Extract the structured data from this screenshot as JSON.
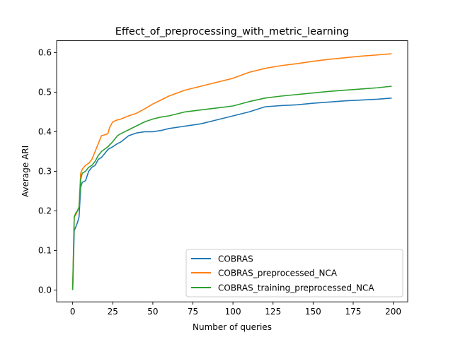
{
  "chart_data": {
    "type": "line",
    "title": "Effect_of_preprocessing_with_metric_learning",
    "xlabel": "Number of queries",
    "ylabel": "Average ARI",
    "xlim": [
      -10,
      209
    ],
    "ylim": [
      -0.03,
      0.63
    ],
    "xticks": [
      0,
      25,
      50,
      75,
      100,
      125,
      150,
      175,
      200
    ],
    "xtick_labels": [
      "0",
      "25",
      "50",
      "75",
      "100",
      "125",
      "150",
      "175",
      "200"
    ],
    "yticks": [
      0.0,
      0.1,
      0.2,
      0.3,
      0.4,
      0.5,
      0.6
    ],
    "ytick_labels": [
      "0.0",
      "0.1",
      "0.2",
      "0.3",
      "0.4",
      "0.5",
      "0.6"
    ],
    "grid": false,
    "legend_position": "lower-right",
    "series": [
      {
        "name": "COBRAS",
        "color": "#1f77b4",
        "x": [
          0,
          1,
          2,
          3,
          4,
          5,
          6,
          8,
          10,
          12,
          14,
          16,
          18,
          20,
          22,
          25,
          28,
          30,
          35,
          40,
          45,
          50,
          55,
          60,
          70,
          80,
          90,
          100,
          110,
          120,
          130,
          140,
          150,
          160,
          170,
          180,
          190,
          199
        ],
        "y": [
          0.0,
          0.15,
          0.16,
          0.17,
          0.185,
          0.26,
          0.272,
          0.276,
          0.3,
          0.31,
          0.315,
          0.33,
          0.335,
          0.345,
          0.355,
          0.362,
          0.37,
          0.374,
          0.39,
          0.397,
          0.4,
          0.4,
          0.403,
          0.408,
          0.414,
          0.42,
          0.43,
          0.44,
          0.45,
          0.463,
          0.466,
          0.468,
          0.472,
          0.475,
          0.478,
          0.48,
          0.482,
          0.485
        ]
      },
      {
        "name": "COBRAS_preprocessed_NCA",
        "color": "#ff7f0e",
        "x": [
          0,
          1,
          2,
          3,
          4,
          5,
          6,
          8,
          10,
          12,
          14,
          16,
          18,
          20,
          22,
          23,
          25,
          28,
          30,
          35,
          40,
          45,
          50,
          55,
          60,
          70,
          80,
          90,
          100,
          110,
          120,
          130,
          140,
          150,
          160,
          170,
          180,
          190,
          199
        ],
        "y": [
          0.0,
          0.185,
          0.19,
          0.2,
          0.21,
          0.295,
          0.305,
          0.315,
          0.32,
          0.33,
          0.35,
          0.37,
          0.39,
          0.392,
          0.395,
          0.41,
          0.425,
          0.43,
          0.432,
          0.44,
          0.447,
          0.458,
          0.47,
          0.48,
          0.49,
          0.505,
          0.515,
          0.525,
          0.535,
          0.55,
          0.56,
          0.567,
          0.572,
          0.578,
          0.583,
          0.587,
          0.591,
          0.594,
          0.597
        ]
      },
      {
        "name": "COBRAS_training_preprocessed_NCA",
        "color": "#2ca02c",
        "x": [
          0,
          1,
          2,
          3,
          4,
          5,
          6,
          8,
          10,
          12,
          14,
          16,
          18,
          20,
          22,
          25,
          28,
          30,
          35,
          40,
          45,
          50,
          55,
          60,
          70,
          80,
          90,
          100,
          110,
          120,
          130,
          140,
          150,
          160,
          170,
          180,
          190,
          199
        ],
        "y": [
          0.0,
          0.185,
          0.195,
          0.2,
          0.21,
          0.28,
          0.295,
          0.3,
          0.31,
          0.315,
          0.325,
          0.34,
          0.35,
          0.356,
          0.362,
          0.375,
          0.39,
          0.395,
          0.405,
          0.415,
          0.425,
          0.432,
          0.437,
          0.44,
          0.45,
          0.455,
          0.46,
          0.465,
          0.476,
          0.485,
          0.49,
          0.494,
          0.498,
          0.502,
          0.505,
          0.508,
          0.511,
          0.515
        ]
      }
    ]
  }
}
